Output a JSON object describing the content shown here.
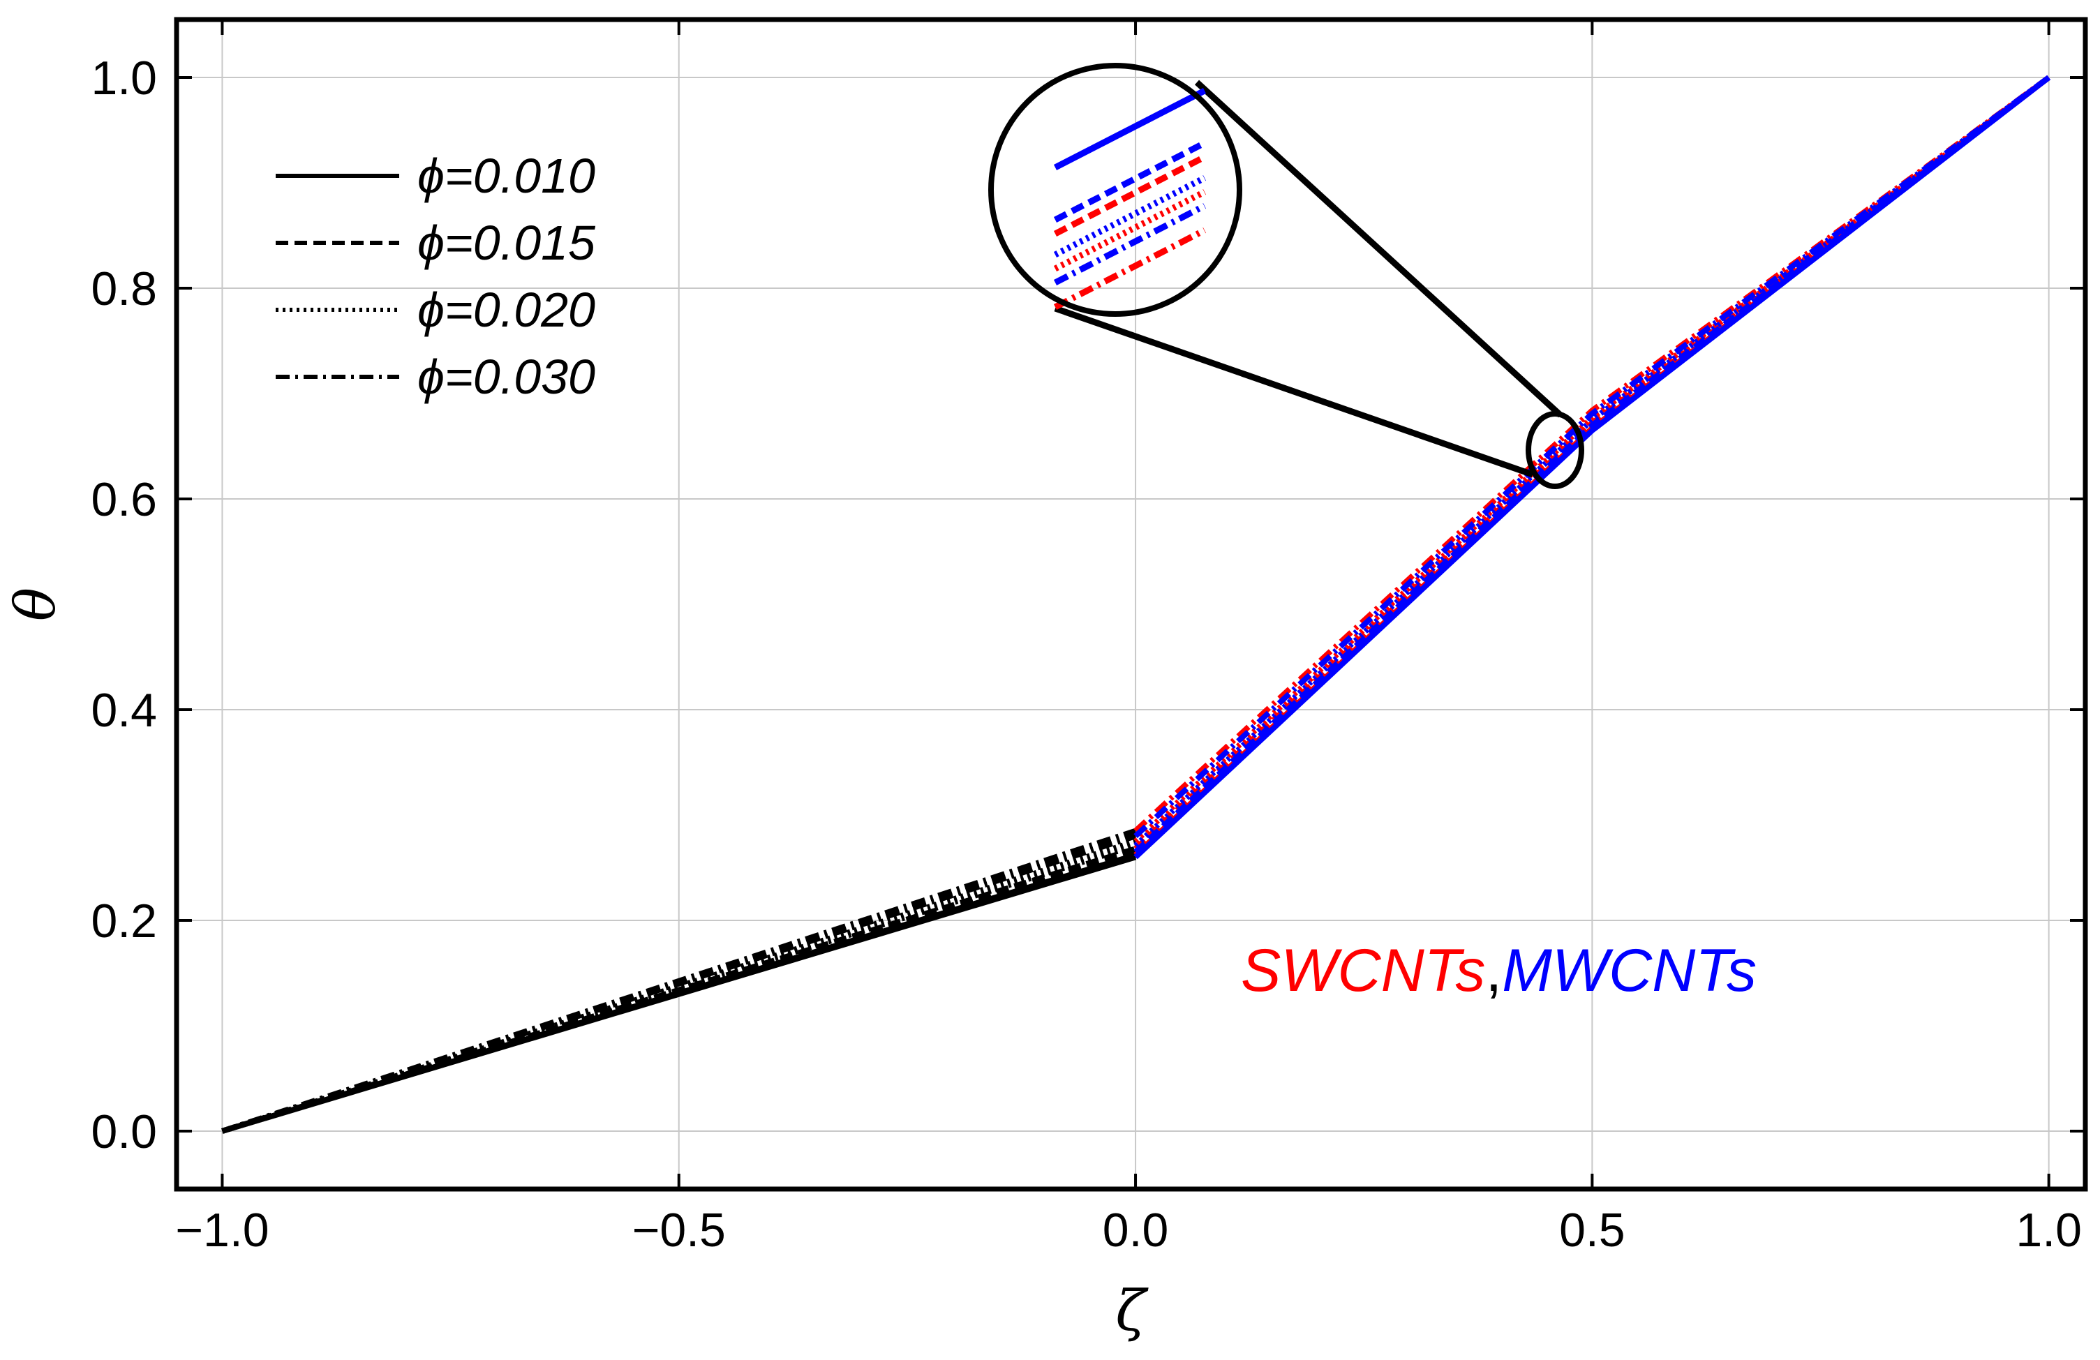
{
  "chart_data": {
    "type": "line",
    "title": "",
    "xlabel": "ζ",
    "ylabel": "θ",
    "xlim": [
      -1.05,
      1.04
    ],
    "ylim": [
      -0.055,
      1.055
    ],
    "grid": true,
    "x_ticks": [
      -1.0,
      -0.5,
      0.0,
      0.5,
      1.0
    ],
    "x_tick_labels": [
      "−1.0",
      "−0.5",
      "0.0",
      "0.5",
      "1.0"
    ],
    "y_ticks": [
      0.0,
      0.2,
      0.4,
      0.6,
      0.8,
      1.0
    ],
    "y_tick_labels": [
      "0.0",
      "0.2",
      "0.4",
      "0.6",
      "0.8",
      "1.0"
    ],
    "legend_position": "top-left",
    "legend": [
      {
        "label": "ϕ=0.010",
        "dash": "solid"
      },
      {
        "label": "ϕ=0.015",
        "dash": "dashed"
      },
      {
        "label": "ϕ=0.020",
        "dash": "dotted"
      },
      {
        "label": "ϕ=0.030",
        "dash": "dashdot"
      }
    ],
    "annotation": {
      "swcnt": "SWCNTs",
      "separator": ",",
      "mwcnt": "MWCNTs"
    },
    "colors": {
      "swcnt": "#ff0000",
      "mwcnt": "#0000ff",
      "base": "#000000"
    },
    "series": [
      {
        "name": "SWCNTs ϕ=0.010",
        "phi": "0.010",
        "color": "#ff0000",
        "dash": "solid",
        "x": [
          -1.0,
          0.0,
          0.5,
          1.0
        ],
        "y": [
          0.0,
          0.262,
          0.667,
          1.0
        ]
      },
      {
        "name": "SWCNTs ϕ=0.015",
        "phi": "0.015",
        "color": "#ff0000",
        "dash": "dashed",
        "x": [
          -1.0,
          0.0,
          0.5,
          1.0
        ],
        "y": [
          0.0,
          0.268,
          0.672,
          1.0
        ]
      },
      {
        "name": "SWCNTs ϕ=0.020",
        "phi": "0.020",
        "color": "#ff0000",
        "dash": "dotted",
        "x": [
          -1.0,
          0.0,
          0.5,
          1.0
        ],
        "y": [
          0.0,
          0.275,
          0.677,
          1.0
        ]
      },
      {
        "name": "SWCNTs ϕ=0.030",
        "phi": "0.030",
        "color": "#ff0000",
        "dash": "dashdot",
        "x": [
          -1.0,
          0.0,
          0.5,
          1.0
        ],
        "y": [
          0.0,
          0.285,
          0.684,
          1.0
        ]
      },
      {
        "name": "MWCNTs ϕ=0.010",
        "phi": "0.010",
        "color": "#0000ff",
        "dash": "solid",
        "x": [
          -1.0,
          0.0,
          0.5,
          1.0
        ],
        "y": [
          0.0,
          0.26,
          0.665,
          1.0
        ]
      },
      {
        "name": "MWCNTs ϕ=0.015",
        "phi": "0.015",
        "color": "#0000ff",
        "dash": "dashed",
        "x": [
          -1.0,
          0.0,
          0.5,
          1.0
        ],
        "y": [
          0.0,
          0.265,
          0.67,
          1.0
        ]
      },
      {
        "name": "MWCNTs ϕ=0.020",
        "phi": "0.020",
        "color": "#0000ff",
        "dash": "dotted",
        "x": [
          -1.0,
          0.0,
          0.5,
          1.0
        ],
        "y": [
          0.0,
          0.271,
          0.675,
          1.0
        ]
      },
      {
        "name": "MWCNTs ϕ=0.030",
        "phi": "0.030",
        "color": "#0000ff",
        "dash": "dashdot",
        "x": [
          -1.0,
          0.0,
          0.5,
          1.0
        ],
        "y": [
          0.0,
          0.28,
          0.681,
          1.0
        ]
      }
    ]
  }
}
